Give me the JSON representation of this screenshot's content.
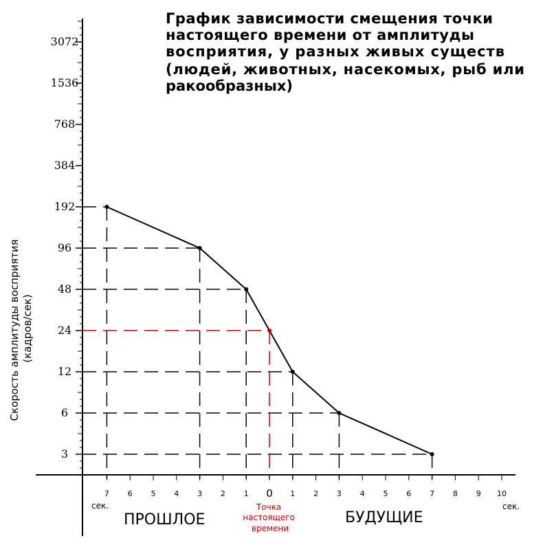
{
  "chart_data": {
    "type": "line",
    "title_lines": [
      "График зависимости смещения точки",
      "настоящего времени от амплитуды",
      "восприятия, у разных живых существ",
      "(людей, животных, насекомых, рыб или",
      "ракообразных)"
    ],
    "ylabel_lines": [
      "Скорость амплитуды восприятия",
      "(кадров/сек)"
    ],
    "y_scale": "log2",
    "y_ticks": [
      3,
      6,
      12,
      24,
      48,
      96,
      192,
      384,
      768,
      1536,
      3072
    ],
    "y_tick_labels": [
      "3",
      "6",
      "12",
      "24",
      "48",
      "96",
      "192",
      "384",
      "768",
      "1536",
      "3072"
    ],
    "ylim": [
      1.7,
      5600
    ],
    "x_ticks": [
      -7,
      -6,
      -5,
      -4,
      -3,
      -2,
      -1,
      0,
      1,
      2,
      3,
      4,
      5,
      6,
      7,
      8,
      9,
      10
    ],
    "x_tick_labels": [
      "7",
      "6",
      "5",
      "4",
      "3",
      "2",
      "1",
      "0",
      "1",
      "2",
      "3",
      "4",
      "5",
      "6",
      "7",
      "8",
      "9",
      "10"
    ],
    "xlim": [
      -8.1,
      10.8
    ],
    "x_unit_label": "сек.",
    "region_past": "ПРОШЛОЕ",
    "region_future": "БУДУЩИЕ",
    "now_label_lines": [
      "Точка",
      "настоящего",
      "времени"
    ],
    "points": [
      {
        "x": -7,
        "y": 192
      },
      {
        "x": -3,
        "y": 96
      },
      {
        "x": -1,
        "y": 48
      },
      {
        "x": 0,
        "y": 24
      },
      {
        "x": 1,
        "y": 12
      },
      {
        "x": 3,
        "y": 6
      },
      {
        "x": 7,
        "y": 3
      }
    ],
    "highlight_point": {
      "x": 0,
      "y": 24
    },
    "colors": {
      "line": "#000000",
      "highlight": "#cc0000",
      "axis": "#000000"
    }
  }
}
